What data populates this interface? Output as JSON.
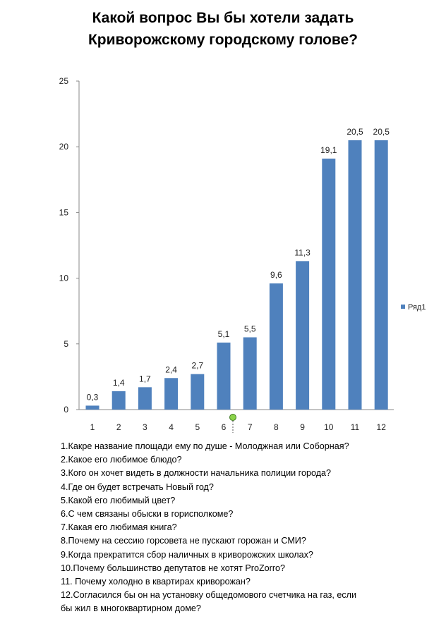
{
  "title_line1": "Какой вопрос Вы бы хотели задать",
  "title_line2": "Криворожскому городскому голове?",
  "chart_data": {
    "type": "bar",
    "categories": [
      "1",
      "2",
      "3",
      "4",
      "5",
      "6",
      "7",
      "8",
      "9",
      "10",
      "11",
      "12"
    ],
    "series": [
      {
        "name": "Ряд1",
        "values": [
          0.3,
          1.4,
          1.7,
          2.4,
          2.7,
          5.1,
          5.5,
          9.6,
          11.3,
          19.1,
          20.5,
          20.5
        ],
        "labels": [
          "0,3",
          "1,4",
          "1,7",
          "2,4",
          "2,7",
          "5,1",
          "5,5",
          "9,6",
          "11,3",
          "19,1",
          "20,5",
          "20,5"
        ]
      }
    ],
    "ylim": [
      0,
      25
    ],
    "yticks": [
      0,
      5,
      10,
      15,
      20,
      25
    ],
    "grid": false,
    "legend": "right",
    "bar_color": "#4f81bd"
  },
  "questions": [
    "1.Какре название площади ему по душе - Молоджная или Соборная?",
    "2.Какое его любимое блюдо?",
    "3.Кого он хочет видеть в должности начальника полиции города?",
    "4.Где он будет встречать Новый год?",
    "5.Какой его любимый цвет?",
    "6.С чем связаны обыски в горисполкоме?",
    "7.Какая его любимая книга?",
    "8.Почему на сессию горсовета не пускают горожан и СМИ?",
    "9.Когда прекратится сбор наличных в криворожских школах?",
    "10.Почему большинство депутатов не хотят ProZorro?",
    "11. Почему холодно в квартирах криворожан?",
    "12.Согласился бы он на установку общедомового счетчика на газ, если",
    "бы жил в многоквартирном доме?"
  ]
}
